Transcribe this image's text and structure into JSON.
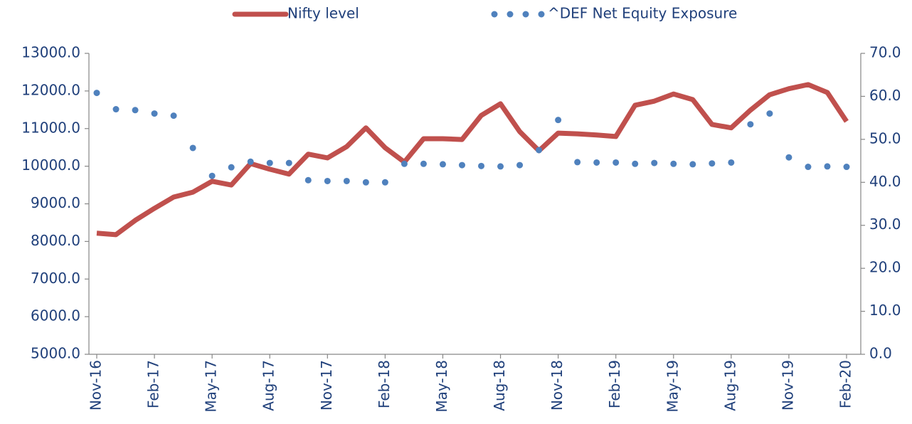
{
  "chart_data": {
    "type": "line",
    "categories": [
      "Nov-16",
      null,
      null,
      "Feb-17",
      null,
      null,
      "May-17",
      null,
      null,
      "Aug-17",
      null,
      null,
      "Nov-17",
      null,
      null,
      "Feb-18",
      null,
      null,
      "May-18",
      null,
      null,
      "Aug-18",
      null,
      null,
      "Nov-18",
      null,
      null,
      "Feb-19",
      null,
      null,
      "May-19",
      null,
      null,
      "Aug-19",
      null,
      null,
      "Nov-19",
      null,
      null,
      "Feb-20"
    ],
    "series": [
      {
        "name": "Nifty level",
        "color": "#c0504d",
        "style": "solid",
        "values": [
          8220,
          8180,
          8560,
          8880,
          9180,
          9310,
          9600,
          9500,
          10070,
          9920,
          9790,
          10320,
          10220,
          10520,
          11020,
          10490,
          10110,
          10730,
          10730,
          10710,
          11350,
          11660,
          10920,
          10410,
          10880,
          10860,
          10830,
          10790,
          11620,
          11730,
          11920,
          11770,
          11110,
          11020,
          11490,
          11900,
          12060,
          12170,
          11960,
          11190
        ]
      },
      {
        "name": "^DEF Net Equity Exposure",
        "color": "#4f81bd",
        "style": "dotted",
        "axis": "y2",
        "values": [
          60.8,
          57,
          56.8,
          56,
          55.5,
          48,
          41.5,
          43.5,
          44.8,
          44.5,
          44.5,
          40.5,
          40.3,
          40.3,
          40,
          40,
          44.3,
          44.3,
          44.2,
          44,
          43.8,
          43.7,
          44,
          47.5,
          54.5,
          44.7,
          44.6,
          44.6,
          44.3,
          44.5,
          44.3,
          44.2,
          44.4,
          44.6,
          53.5,
          56,
          45.8,
          43.6,
          43.7,
          43.6
        ]
      }
    ],
    "ylim": [
      5000,
      13000
    ],
    "yticks": [
      {
        "value": 5000,
        "label": "5000.0"
      },
      {
        "value": 6000,
        "label": "6000.0"
      },
      {
        "value": 7000,
        "label": "7000.0"
      },
      {
        "value": 8000,
        "label": "8000.0"
      },
      {
        "value": 9000,
        "label": "9000.0"
      },
      {
        "value": 10000,
        "label": "10000.0"
      },
      {
        "value": 11000,
        "label": "11000.0"
      },
      {
        "value": 12000,
        "label": "12000.0"
      },
      {
        "value": 13000,
        "label": "13000.0"
      }
    ],
    "y2lim": [
      0,
      70
    ],
    "y2ticks": [
      {
        "value": 0,
        "label": "0.0"
      },
      {
        "value": 10,
        "label": "10.0"
      },
      {
        "value": 20,
        "label": "20.0"
      },
      {
        "value": 30,
        "label": "30.0"
      },
      {
        "value": 40,
        "label": "40.0"
      },
      {
        "value": 50,
        "label": "50.0"
      },
      {
        "value": 60,
        "label": "60.0"
      },
      {
        "value": 70,
        "label": "70.0"
      }
    ],
    "legend": "top",
    "grid": false
  }
}
